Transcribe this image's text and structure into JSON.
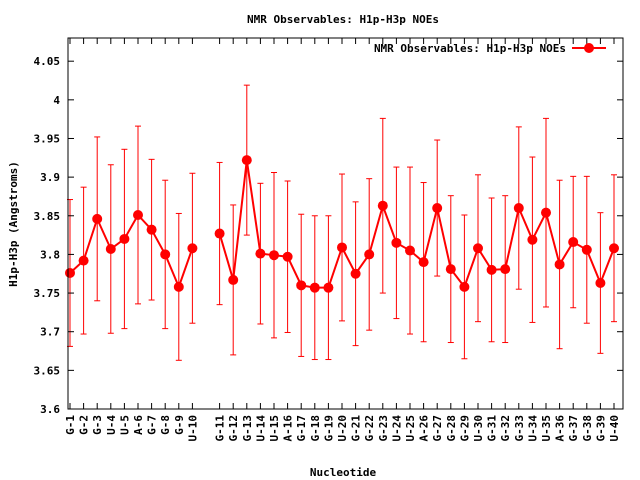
{
  "chart_data": {
    "type": "line",
    "title": "NMR Observables: H1p-H3p NOEs",
    "xlabel": "Nucleotide",
    "ylabel": "H1p-H3p (Angstroms)",
    "ylim": [
      3.6,
      4.08
    ],
    "yticks": [
      "3.6",
      "3.65",
      "3.7",
      "3.75",
      "3.8",
      "3.85",
      "3.9",
      "3.95",
      "4",
      "4.05"
    ],
    "grid": false,
    "legend_position": "top-right",
    "colors": {
      "series": "#ff0000",
      "axis": "#000000"
    },
    "series": [
      {
        "name": "NMR Observables: H1p-H3p NOEs",
        "points": [
          {
            "x": "G-1",
            "y": 3.776,
            "err": 0.095
          },
          {
            "x": "G-2",
            "y": 3.792,
            "err": 0.095
          },
          {
            "x": "G-3",
            "y": 3.846,
            "err": 0.106
          },
          {
            "x": "U-4",
            "y": 3.807,
            "err": 0.109
          },
          {
            "x": "U-5",
            "y": 3.82,
            "err": 0.116
          },
          {
            "x": "A-6",
            "y": 3.851,
            "err": 0.115
          },
          {
            "x": "G-7",
            "y": 3.832,
            "err": 0.091
          },
          {
            "x": "G-8",
            "y": 3.8,
            "err": 0.096
          },
          {
            "x": "G-9",
            "y": 3.758,
            "err": 0.095
          },
          {
            "x": "U-10",
            "y": 3.808,
            "err": 0.097
          },
          {
            "x": "G-11",
            "y": 3.827,
            "err": 0.092
          },
          {
            "x": "G-12",
            "y": 3.767,
            "err": 0.097
          },
          {
            "x": "G-13",
            "y": 3.922,
            "err": 0.097
          },
          {
            "x": "U-14",
            "y": 3.801,
            "err": 0.091
          },
          {
            "x": "U-15",
            "y": 3.799,
            "err": 0.107
          },
          {
            "x": "A-16",
            "y": 3.797,
            "err": 0.098
          },
          {
            "x": "G-17",
            "y": 3.76,
            "err": 0.092
          },
          {
            "x": "G-18",
            "y": 3.757,
            "err": 0.093
          },
          {
            "x": "G-19",
            "y": 3.757,
            "err": 0.093
          },
          {
            "x": "U-20",
            "y": 3.809,
            "err": 0.095
          },
          {
            "x": "G-21",
            "y": 3.775,
            "err": 0.093
          },
          {
            "x": "G-22",
            "y": 3.8,
            "err": 0.098
          },
          {
            "x": "G-23",
            "y": 3.863,
            "err": 0.113
          },
          {
            "x": "U-24",
            "y": 3.815,
            "err": 0.098
          },
          {
            "x": "U-25",
            "y": 3.805,
            "err": 0.108
          },
          {
            "x": "A-26",
            "y": 3.79,
            "err": 0.103
          },
          {
            "x": "G-27",
            "y": 3.86,
            "err": 0.088
          },
          {
            "x": "G-28",
            "y": 3.781,
            "err": 0.095
          },
          {
            "x": "G-29",
            "y": 3.758,
            "err": 0.093
          },
          {
            "x": "U-30",
            "y": 3.808,
            "err": 0.095
          },
          {
            "x": "G-31",
            "y": 3.78,
            "err": 0.093
          },
          {
            "x": "G-32",
            "y": 3.781,
            "err": 0.095
          },
          {
            "x": "G-33",
            "y": 3.86,
            "err": 0.105
          },
          {
            "x": "U-34",
            "y": 3.819,
            "err": 0.107
          },
          {
            "x": "U-35",
            "y": 3.854,
            "err": 0.122
          },
          {
            "x": "A-36",
            "y": 3.787,
            "err": 0.109
          },
          {
            "x": "G-37",
            "y": 3.816,
            "err": 0.085
          },
          {
            "x": "G-38",
            "y": 3.806,
            "err": 0.095
          },
          {
            "x": "G-39",
            "y": 3.763,
            "err": 0.091
          },
          {
            "x": "U-40",
            "y": 3.808,
            "err": 0.095
          }
        ]
      }
    ]
  }
}
